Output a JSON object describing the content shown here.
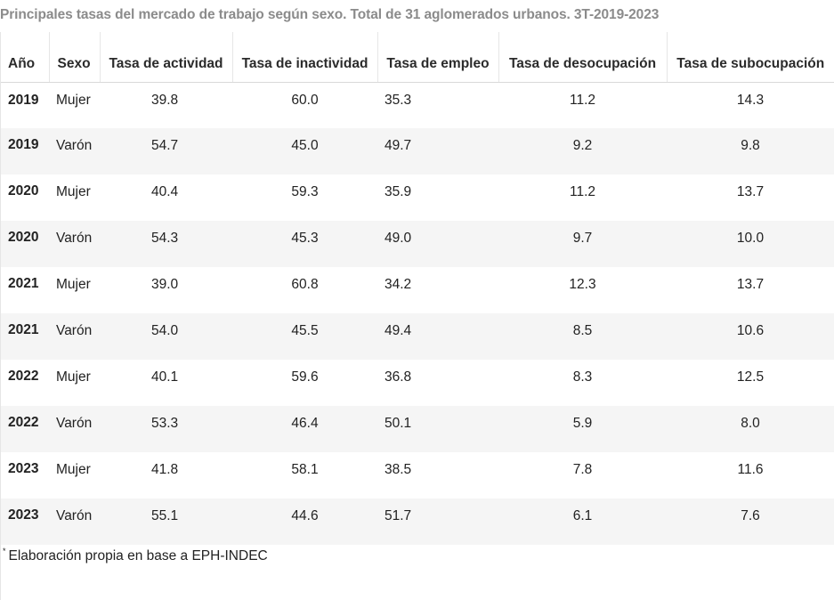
{
  "title": "Principales tasas del mercado de trabajo según sexo. Total de 31 aglomerados urbanos. 3T-2019-2023",
  "footnote": {
    "mark": "*",
    "text": "Elaboración propia en base a EPH-INDEC"
  },
  "colors": {
    "title": "#8b8b8b",
    "stripe": "#f5f5f5",
    "border": "#e6e6e6"
  },
  "chart_data": {
    "type": "table",
    "title": "Principales tasas del mercado de trabajo según sexo. Total de 31 aglomerados urbanos. 3T-2019-2023",
    "columns": [
      "Año",
      "Sexo",
      "Tasa de actividad",
      "Tasa de inactividad",
      "Tasa de empleo",
      "Tasa de desocupación",
      "Tasa de subocupación"
    ],
    "rows": [
      [
        "2019",
        "Mujer",
        "39.8",
        "60.0",
        "35.3",
        "11.2",
        "14.3"
      ],
      [
        "2019",
        "Varón",
        "54.7",
        "45.0",
        "49.7",
        "9.2",
        "9.8"
      ],
      [
        "2020",
        "Mujer",
        "40.4",
        "59.3",
        "35.9",
        "11.2",
        "13.7"
      ],
      [
        "2020",
        "Varón",
        "54.3",
        "45.3",
        "49.0",
        "9.7",
        "10.0"
      ],
      [
        "2021",
        "Mujer",
        "39.0",
        "60.8",
        "34.2",
        "12.3",
        "13.7"
      ],
      [
        "2021",
        "Varón",
        "54.0",
        "45.5",
        "49.4",
        "8.5",
        "10.6"
      ],
      [
        "2022",
        "Mujer",
        "40.1",
        "59.6",
        "36.8",
        "8.3",
        "12.5"
      ],
      [
        "2022",
        "Varón",
        "53.3",
        "46.4",
        "50.1",
        "5.9",
        "8.0"
      ],
      [
        "2023",
        "Mujer",
        "41.8",
        "58.1",
        "38.5",
        "7.8",
        "11.6"
      ],
      [
        "2023",
        "Varón",
        "55.1",
        "44.6",
        "51.7",
        "6.1",
        "7.6"
      ]
    ]
  }
}
